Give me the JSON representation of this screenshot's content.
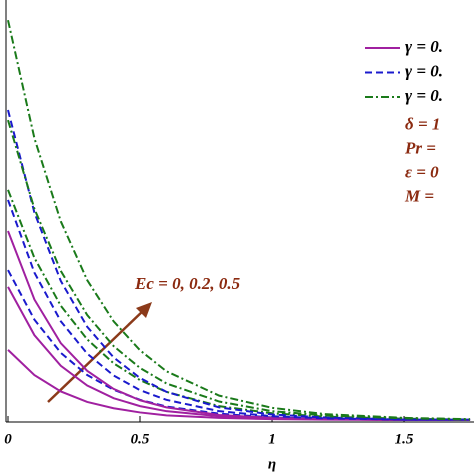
{
  "chart_data": {
    "type": "line",
    "xlabel": "η",
    "x": [
      0,
      0.1,
      0.2,
      0.3,
      0.4,
      0.5,
      0.6,
      0.8,
      1,
      1.2,
      1.5,
      1.75
    ],
    "xlim": [
      0,
      1.765
    ],
    "xticks": [
      0,
      0.5,
      1,
      1.5
    ],
    "ylim": [
      0,
      1
    ],
    "legend": "upper right",
    "series": [
      {
        "name": "γ = 0.",
        "color": "#a020a0",
        "dash": "solid",
        "values": [
          0.167,
          0.107,
          0.068,
          0.043,
          0.028,
          0.018,
          0.011,
          0.005,
          0.002,
          0.001,
          0,
          0
        ]
      },
      {
        "name": "γ = 0.",
        "color": "#1a1acd",
        "dash": "dashed",
        "values": [
          0.357,
          0.239,
          0.16,
          0.107,
          0.072,
          0.048,
          0.032,
          0.015,
          0.006,
          0.003,
          0.001,
          0
        ]
      },
      {
        "name": "γ = 0.",
        "color": "#1a7a1a",
        "dash": "dashdot",
        "values": [
          0.548,
          0.386,
          0.272,
          0.192,
          0.135,
          0.095,
          0.067,
          0.033,
          0.016,
          0.008,
          0.003,
          0.001
        ]
      },
      {
        "color": "#a020a0",
        "dash": "solid",
        "values": [
          0.317,
          0.202,
          0.129,
          0.082,
          0.052,
          0.033,
          0.021,
          0.009,
          0.003,
          0.002,
          0,
          0
        ]
      },
      {
        "color": "#a020a0",
        "dash": "solid",
        "values": [
          0.45,
          0.287,
          0.183,
          0.117,
          0.074,
          0.047,
          0.03,
          0.012,
          0.005,
          0.002,
          0,
          0
        ]
      },
      {
        "color": "#1a1acd",
        "dash": "dashed",
        "values": [
          0.524,
          0.351,
          0.235,
          0.158,
          0.106,
          0.071,
          0.048,
          0.021,
          0.009,
          0.004,
          0.001,
          0.001
        ]
      },
      {
        "color": "#1a1acd",
        "dash": "dashed",
        "values": [
          0.738,
          0.494,
          0.331,
          0.222,
          0.149,
          0.1,
          0.067,
          0.03,
          0.013,
          0.006,
          0.001,
          0.001
        ]
      },
      {
        "color": "#1a7a1a",
        "dash": "dashdot",
        "values": [
          0.714,
          0.503,
          0.355,
          0.25,
          0.176,
          0.124,
          0.087,
          0.044,
          0.021,
          0.011,
          0.004,
          0.001
        ]
      },
      {
        "color": "#1a7a1a",
        "dash": "dashdot",
        "values": [
          0.952,
          0.671,
          0.473,
          0.333,
          0.235,
          0.166,
          0.116,
          0.058,
          0.029,
          0.014,
          0.005,
          0.002
        ]
      }
    ],
    "parameters": [
      "δ = 1",
      "Pr =",
      "ε = 0",
      "M = "
    ],
    "arrow_label": "Ec = 0, 0.2, 0.5"
  }
}
